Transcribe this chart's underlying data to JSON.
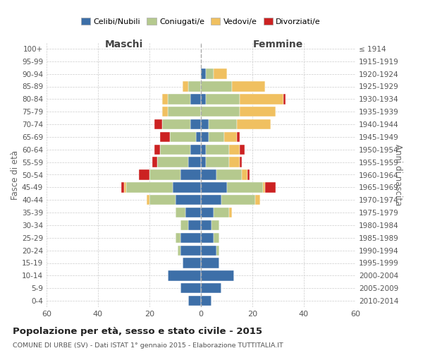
{
  "age_groups": [
    "0-4",
    "5-9",
    "10-14",
    "15-19",
    "20-24",
    "25-29",
    "30-34",
    "35-39",
    "40-44",
    "45-49",
    "50-54",
    "55-59",
    "60-64",
    "65-69",
    "70-74",
    "75-79",
    "80-84",
    "85-89",
    "90-94",
    "95-99",
    "100+"
  ],
  "birth_years": [
    "2010-2014",
    "2005-2009",
    "2000-2004",
    "1995-1999",
    "1990-1994",
    "1985-1989",
    "1980-1984",
    "1975-1979",
    "1970-1974",
    "1965-1969",
    "1960-1964",
    "1955-1959",
    "1950-1954",
    "1945-1949",
    "1940-1944",
    "1935-1939",
    "1930-1934",
    "1925-1929",
    "1920-1924",
    "1915-1919",
    "≤ 1914"
  ],
  "male": {
    "celibe": [
      5,
      8,
      13,
      7,
      8,
      8,
      5,
      6,
      10,
      11,
      8,
      5,
      4,
      2,
      4,
      0,
      4,
      0,
      0,
      0,
      0
    ],
    "coniugato": [
      0,
      0,
      0,
      0,
      1,
      2,
      3,
      4,
      10,
      18,
      12,
      12,
      12,
      10,
      11,
      13,
      9,
      5,
      0,
      0,
      0
    ],
    "vedovo": [
      0,
      0,
      0,
      0,
      0,
      0,
      0,
      0,
      1,
      1,
      0,
      0,
      0,
      0,
      0,
      2,
      2,
      2,
      0,
      0,
      0
    ],
    "divorziato": [
      0,
      0,
      0,
      0,
      0,
      0,
      0,
      0,
      0,
      1,
      4,
      2,
      2,
      4,
      3,
      0,
      0,
      0,
      0,
      0,
      0
    ]
  },
  "female": {
    "nubile": [
      4,
      8,
      13,
      7,
      6,
      5,
      4,
      5,
      8,
      10,
      6,
      2,
      2,
      3,
      3,
      0,
      2,
      0,
      2,
      0,
      0
    ],
    "coniugata": [
      0,
      0,
      0,
      0,
      1,
      2,
      3,
      6,
      13,
      14,
      10,
      9,
      9,
      6,
      11,
      15,
      13,
      12,
      3,
      0,
      0
    ],
    "vedova": [
      0,
      0,
      0,
      0,
      0,
      0,
      0,
      1,
      2,
      1,
      2,
      4,
      4,
      5,
      13,
      14,
      17,
      13,
      5,
      0,
      0
    ],
    "divorziata": [
      0,
      0,
      0,
      0,
      0,
      0,
      0,
      0,
      0,
      4,
      1,
      1,
      2,
      1,
      0,
      0,
      1,
      0,
      0,
      0,
      0
    ]
  },
  "colors": {
    "celibe": "#3d6fa8",
    "coniugato": "#b5c98e",
    "vedovo": "#f0c060",
    "divorziato": "#cc2222"
  },
  "xlim": 60,
  "title": "Popolazione per età, sesso e stato civile - 2015",
  "subtitle": "COMUNE DI URBE (SV) - Dati ISTAT 1° gennaio 2015 - Elaborazione TUTTITALIA.IT",
  "xlabel_left": "Maschi",
  "xlabel_right": "Femmine",
  "ylabel_left": "Fasce di età",
  "ylabel_right": "Anni di nascita",
  "legend_labels": [
    "Celibi/Nubili",
    "Coniugati/e",
    "Vedovi/e",
    "Divorziati/e"
  ]
}
